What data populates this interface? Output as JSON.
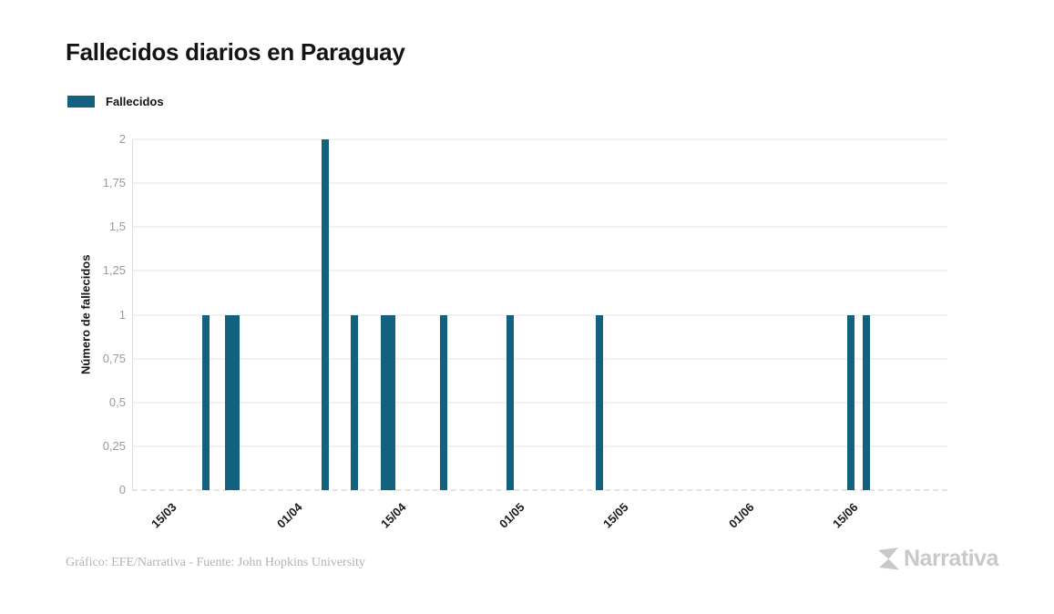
{
  "title": "Fallecidos diarios en Paraguay",
  "legend": {
    "label": "Fallecidos",
    "swatch_color": "#14607f"
  },
  "footer": {
    "credit": "Gráfico: EFE/Narrativa - Fuente: John Hopkins University"
  },
  "logo": {
    "text": "Narrativa",
    "color": "#c9c9c9"
  },
  "colors": {
    "bar": "#14607f",
    "grid": "#f2f2f2",
    "zero_line": "#e3e3e3",
    "axis_line": "#dedede",
    "y_tick_text": "#9b9b9b",
    "x_tick_text": "#1a1a1a",
    "title_text": "#141414",
    "footer_text": "#b3b3b3"
  },
  "chart_data": {
    "type": "bar",
    "title": "Fallecidos diarios en Paraguay",
    "xlabel": "",
    "ylabel": "Número de fallecidos",
    "ylim": [
      0,
      2
    ],
    "grid": "horizontal",
    "legend_position": "top-left",
    "y_ticks": [
      {
        "value": 2,
        "label": "2"
      },
      {
        "value": 1.75,
        "label": "1,75"
      },
      {
        "value": 1.5,
        "label": "1,5"
      },
      {
        "value": 1.25,
        "label": "1,25"
      },
      {
        "value": 1,
        "label": "1"
      },
      {
        "value": 0.75,
        "label": "0,75"
      },
      {
        "value": 0.5,
        "label": "0,5"
      },
      {
        "value": 0.25,
        "label": "0,25"
      },
      {
        "value": 0,
        "label": "0"
      }
    ],
    "x_axis": {
      "start_date": "10/03",
      "end_date": "28/06",
      "ticks": [
        "15/03",
        "01/04",
        "15/04",
        "01/05",
        "15/05",
        "01/06",
        "15/06"
      ]
    },
    "series": [
      {
        "name": "Fallecidos",
        "color": "#14607f",
        "points": [
          {
            "date": "20/03",
            "value": 1
          },
          {
            "date": "23/03",
            "value": 1
          },
          {
            "date": "24/03",
            "value": 1
          },
          {
            "date": "05/04",
            "value": 2
          },
          {
            "date": "09/04",
            "value": 1
          },
          {
            "date": "13/04",
            "value": 1
          },
          {
            "date": "14/04",
            "value": 1
          },
          {
            "date": "21/04",
            "value": 1
          },
          {
            "date": "30/04",
            "value": 1
          },
          {
            "date": "12/05",
            "value": 1
          },
          {
            "date": "15/06",
            "value": 1
          },
          {
            "date": "17/06",
            "value": 1
          }
        ]
      }
    ]
  }
}
